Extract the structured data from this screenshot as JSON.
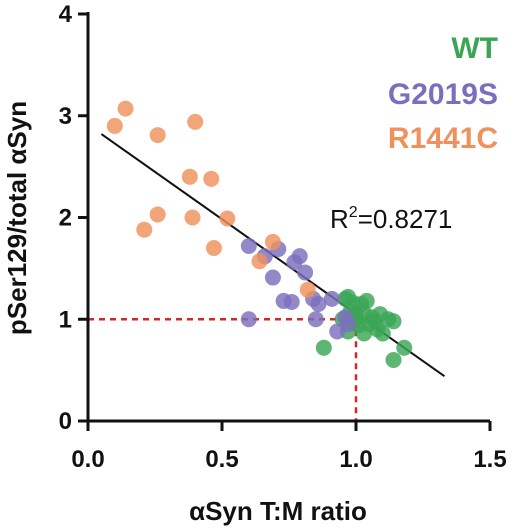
{
  "chart_data": {
    "type": "scatter",
    "xlabel": "αSyn T:M ratio",
    "ylabel": "pSer129/total αSyn",
    "xlim": [
      0,
      1.5
    ],
    "ylim": [
      0,
      4
    ],
    "x_ticks": [
      "0.0",
      "0.5",
      "1.0",
      "1.5"
    ],
    "y_ticks": [
      "0",
      "1",
      "2",
      "3",
      "4"
    ],
    "annotation": {
      "r2_prefix": "R",
      "r2_exp": "2",
      "r2_value": "=0.8271"
    },
    "regression": {
      "x": [
        0.05,
        1.33
      ],
      "y": [
        2.82,
        0.44
      ]
    },
    "reference_lines": {
      "x": 1.0,
      "y": 1.0,
      "color": "#d62728"
    },
    "series": [
      {
        "name": "WT",
        "color": "#3aa655",
        "points": [
          [
            0.96,
            1.2
          ],
          [
            0.97,
            1.22
          ],
          [
            0.99,
            1.16
          ],
          [
            1.02,
            1.15
          ],
          [
            1.04,
            1.18
          ],
          [
            0.98,
            1.08
          ],
          [
            1.0,
            1.05
          ],
          [
            1.03,
            1.06
          ],
          [
            1.06,
            1.02
          ],
          [
            1.09,
            1.05
          ],
          [
            0.95,
            1.0
          ],
          [
            0.99,
            0.97
          ],
          [
            1.01,
            0.94
          ],
          [
            1.05,
            0.95
          ],
          [
            1.08,
            0.9
          ],
          [
            1.12,
            1.0
          ],
          [
            0.97,
            0.88
          ],
          [
            1.03,
            0.86
          ],
          [
            1.1,
            0.86
          ],
          [
            1.14,
            0.98
          ],
          [
            0.88,
            0.72
          ],
          [
            1.14,
            0.6
          ],
          [
            1.18,
            0.72
          ],
          [
            1.0,
            1.0
          ],
          [
            1.07,
            0.98
          ]
        ]
      },
      {
        "name": "G2019S",
        "color": "#7b6fbd",
        "points": [
          [
            0.6,
            1.0
          ],
          [
            0.6,
            1.72
          ],
          [
            0.66,
            1.62
          ],
          [
            0.69,
            1.41
          ],
          [
            0.71,
            1.69
          ],
          [
            0.73,
            1.18
          ],
          [
            0.76,
            1.17
          ],
          [
            0.77,
            1.56
          ],
          [
            0.79,
            1.62
          ],
          [
            0.81,
            1.46
          ],
          [
            0.84,
            1.2
          ],
          [
            0.85,
            1.0
          ],
          [
            0.86,
            1.15
          ],
          [
            0.91,
            1.2
          ],
          [
            0.93,
            0.88
          ],
          [
            0.96,
            1.02
          ],
          [
            0.97,
            0.95
          ]
        ]
      },
      {
        "name": "R1441C",
        "color": "#f0915d",
        "points": [
          [
            0.1,
            2.9
          ],
          [
            0.14,
            3.07
          ],
          [
            0.26,
            2.81
          ],
          [
            0.4,
            2.94
          ],
          [
            0.38,
            2.4
          ],
          [
            0.46,
            2.38
          ],
          [
            0.26,
            2.03
          ],
          [
            0.39,
            2.0
          ],
          [
            0.52,
            1.99
          ],
          [
            0.21,
            1.88
          ],
          [
            0.47,
            1.7
          ],
          [
            0.69,
            1.76
          ],
          [
            0.64,
            1.57
          ],
          [
            0.82,
            1.29
          ]
        ]
      }
    ]
  }
}
